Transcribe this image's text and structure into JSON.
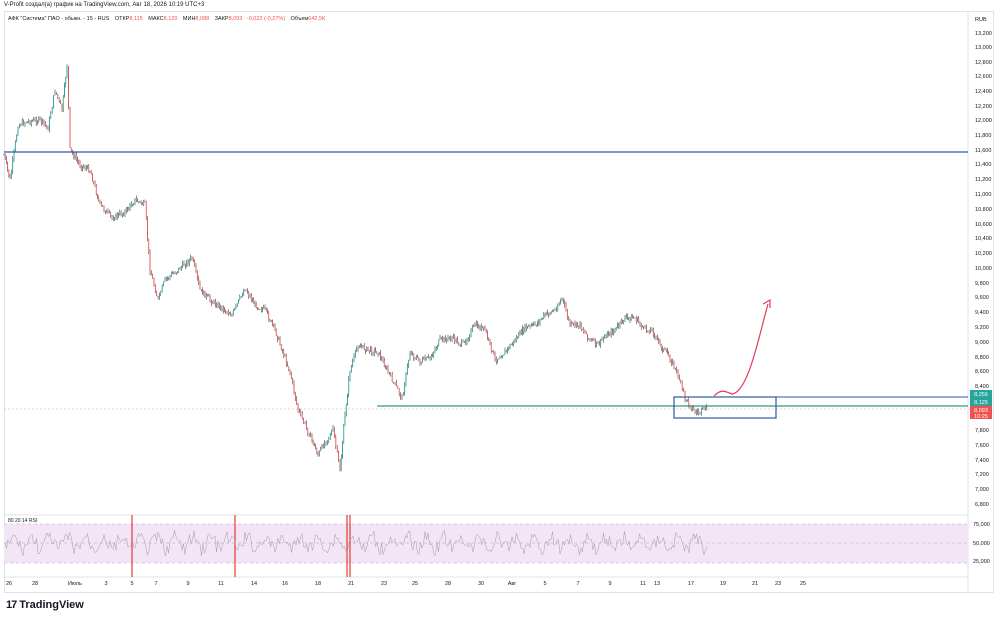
{
  "header": {
    "text": "V-Profit создал(а) график на TradingView.com, Авг 18, 2026 10:19 UTC+3"
  },
  "symbol": {
    "name": "АФК \"Система\" ПАО - обыкн. - 15 - RUS",
    "open_label": "ОТКР",
    "open_value": "8,115",
    "high_label": "МАКС",
    "high_value": "8,120",
    "low_label": "МИН",
    "low_value": "8,088",
    "close_label": "ЗАКР",
    "close_value": "8,093",
    "change_value": "-0,022 (-0,27%)",
    "volume_label": "Объем",
    "volume_value": "642,5K",
    "currency": "RUB"
  },
  "price_axis": {
    "ticks": [
      "13,200",
      "13,000",
      "12,800",
      "12,600",
      "12,400",
      "12,200",
      "12,000",
      "11,800",
      "11,600",
      "11,400",
      "11,200",
      "11,000",
      "10,800",
      "10,600",
      "10,400",
      "10,200",
      "10,000",
      "9,800",
      "9,600",
      "9,400",
      "9,200",
      "9,000",
      "8,800",
      "8,600",
      "8,400",
      "7,800",
      "7,600",
      "7,400",
      "7,200",
      "7,000",
      "6,800"
    ],
    "badges": [
      {
        "text": "8,256",
        "color": "#26a69a"
      },
      {
        "text": "8,125",
        "color": "#26a69a"
      },
      {
        "text": "8,093",
        "color": "#ef5350"
      },
      {
        "text": "10:25",
        "color": "#ef5350"
      }
    ]
  },
  "rsi": {
    "label": "80 20 14 RSI",
    "ticks": [
      "75,000",
      "50,000",
      "25,000"
    ]
  },
  "time_axis": {
    "ticks": [
      "26",
      "28",
      "Июль",
      "3",
      "5",
      "7",
      "9",
      "11",
      "14",
      "16",
      "18",
      "21",
      "23",
      "25",
      "28",
      "30",
      "Авг",
      "5",
      "7",
      "9",
      "11",
      "13",
      "17",
      "19",
      "21",
      "23",
      "25"
    ]
  },
  "colors": {
    "up": "#26a69a",
    "down": "#ef5350",
    "candle": "#131722",
    "horizontal_line": "#2a5aa6",
    "support_line": "#2e9a86",
    "arrow": "#e53a5a",
    "rsi_band": "#f3e5f5"
  },
  "logo": {
    "mark": "17",
    "text": "TradingView"
  }
}
